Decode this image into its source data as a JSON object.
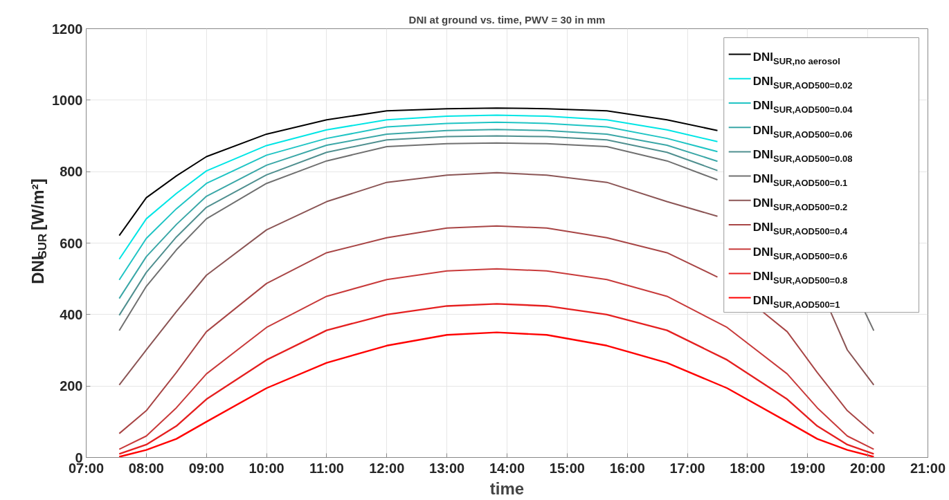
{
  "chart_data": {
    "type": "line",
    "title": "DNI at ground vs. time, PWV = 30 in mm",
    "xlabel": "time",
    "ylabel": "DNI$_{SUR}$ [W/m²]",
    "x": [
      7.55,
      8,
      8.5,
      9,
      10,
      11,
      12,
      13,
      13.83,
      14.66,
      15.66,
      16.66,
      17.66,
      18.66,
      19.16,
      19.66,
      20.1
    ],
    "series": [
      {
        "name": "DNI$_{SUR,no aerosol}$",
        "color": "#000000",
        "x": [
          7.55,
          8,
          8.5,
          9,
          10,
          11,
          12,
          13,
          13.83,
          14.66,
          15.66,
          16.66,
          17.5
        ],
        "values": [
          621,
          727,
          788,
          842,
          905,
          945,
          970,
          976,
          978,
          976,
          970,
          945,
          915
        ]
      },
      {
        "name": "DNI$_{SUR,AOD500=0.02}$",
        "color": "#00e5e5",
        "x": [
          7.55,
          8,
          8.5,
          9,
          10,
          11,
          12,
          13,
          13.83,
          14.66,
          15.66,
          16.66,
          17.5
        ],
        "values": [
          555,
          668,
          739,
          802,
          873,
          917,
          945,
          955,
          958,
          955,
          945,
          917,
          884
        ]
      },
      {
        "name": "DNI$_{SUR,AOD500=0.04}$",
        "color": "#1fc4c4",
        "x": [
          7.55,
          8,
          8.5,
          9,
          10,
          11,
          12,
          13,
          13.83,
          14.66,
          15.66,
          16.66,
          17.5
        ],
        "values": [
          497,
          613,
          696,
          767,
          846,
          893,
          925,
          935,
          938,
          935,
          925,
          893,
          856
        ]
      },
      {
        "name": "DNI$_{SUR,AOD500=0.06}$",
        "color": "#3aa7a7",
        "x": [
          7.55,
          8,
          8.5,
          9,
          10,
          11,
          12,
          13,
          13.83,
          14.66,
          15.66,
          16.66,
          17.5
        ],
        "values": [
          445,
          562,
          652,
          731,
          818,
          874,
          905,
          915,
          918,
          915,
          905,
          874,
          829
        ]
      },
      {
        "name": "DNI$_{SUR,AOD500=0.08}$",
        "color": "#4f8f8f",
        "x": [
          7.55,
          8,
          8.5,
          9,
          10,
          11,
          12,
          13,
          13.83,
          14.66,
          15.66,
          16.66,
          17.5
        ],
        "values": [
          398,
          518,
          617,
          700,
          791,
          854,
          889,
          898,
          900,
          898,
          889,
          854,
          803
        ]
      },
      {
        "name": "DNI$_{SUR,AOD500=0.1}$",
        "color": "#707070",
        "x": [
          7.55,
          8,
          8.5,
          9,
          10,
          11,
          12,
          13,
          13.83,
          14.66,
          15.66,
          16.66,
          17.5,
          19,
          19.95,
          20.1
        ],
        "values": [
          355,
          479,
          581,
          668,
          767,
          830,
          870,
          878,
          880,
          878,
          870,
          830,
          777,
          null,
          408,
          355
        ]
      },
      {
        "name": "DNI$_{SUR,AOD500=0.2}$",
        "color": "#8b5555",
        "x": [
          7.55,
          8,
          8.5,
          9,
          10,
          11,
          12,
          13,
          13.83,
          14.66,
          15.66,
          16.66,
          17.5,
          18.5,
          19.38,
          19.66,
          20.1
        ],
        "values": [
          203,
          301,
          408,
          510,
          637,
          716,
          770,
          790,
          797,
          790,
          770,
          716,
          675,
          null,
          408,
          301,
          203
        ]
      },
      {
        "name": "DNI$_{SUR,AOD500=0.4}$",
        "color": "#a84545",
        "x": [
          7.55,
          8,
          8.5,
          9,
          10,
          11,
          12,
          13,
          13.83,
          14.66,
          15.66,
          16.66,
          17.5,
          17.9,
          18.25,
          18.66,
          19.16,
          19.66,
          20.1
        ],
        "values": [
          67,
          131,
          238,
          352,
          487,
          573,
          615,
          642,
          648,
          642,
          615,
          573,
          505,
          null,
          408,
          352,
          238,
          131,
          67
        ]
      },
      {
        "name": "DNI$_{SUR,AOD500=0.6}$",
        "color": "#c83a3a",
        "values": [
          23,
          60,
          139,
          234,
          364,
          451,
          498,
          522,
          528,
          522,
          498,
          451,
          364,
          234,
          139,
          60,
          23
        ]
      },
      {
        "name": "DNI$_{SUR,AOD500=0.8}$",
        "color": "#e52020",
        "values": [
          10,
          36,
          88,
          163,
          273,
          356,
          400,
          424,
          430,
          424,
          400,
          356,
          273,
          163,
          88,
          36,
          10
        ]
      },
      {
        "name": "DNI$_{SUR,AOD500=1}$",
        "color": "#ff0000",
        "values": [
          2,
          21,
          52,
          100,
          194,
          265,
          313,
          343,
          350,
          343,
          313,
          265,
          194,
          100,
          52,
          21,
          2
        ]
      }
    ],
    "xlim": [
      7,
      21
    ],
    "ylim": [
      0,
      1200
    ],
    "xticks": [
      {
        "value": 7,
        "label": "07:00"
      },
      {
        "value": 8,
        "label": "08:00"
      },
      {
        "value": 9,
        "label": "09:00"
      },
      {
        "value": 10,
        "label": "10:00"
      },
      {
        "value": 11,
        "label": "11:00"
      },
      {
        "value": 12,
        "label": "12:00"
      },
      {
        "value": 13,
        "label": "13:00"
      },
      {
        "value": 14,
        "label": "14:00"
      },
      {
        "value": 15,
        "label": "15:00"
      },
      {
        "value": 16,
        "label": "16:00"
      },
      {
        "value": 17,
        "label": "17:00"
      },
      {
        "value": 18,
        "label": "18:00"
      },
      {
        "value": 19,
        "label": "19:00"
      },
      {
        "value": 20,
        "label": "20:00"
      },
      {
        "value": 21,
        "label": "21:00"
      }
    ],
    "yticks": [
      0,
      200,
      400,
      600,
      800,
      1000,
      1200
    ],
    "grid": true,
    "legend": "top right",
    "line_style": "solid"
  }
}
